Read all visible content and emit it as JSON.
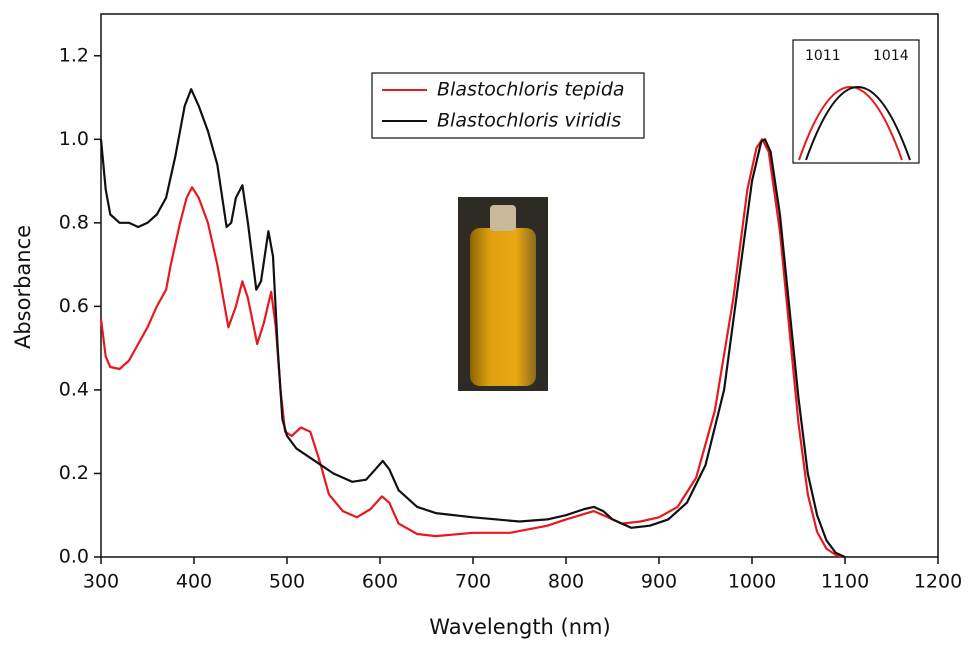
{
  "chart_data": {
    "type": "line",
    "x_label": "Wavelength (nm)",
    "y_label": "Absorbance",
    "xlim": [
      300,
      1200
    ],
    "ylim": [
      0,
      1.3
    ],
    "xticks": [
      300,
      400,
      500,
      600,
      700,
      800,
      900,
      1000,
      1100,
      1200
    ],
    "yticks": [
      {
        "value": 0,
        "label": "0.0"
      },
      0.2,
      0.4,
      0.6,
      0.8,
      {
        "value": 1,
        "label": "1.0"
      },
      1.2
    ],
    "annotations": [
      "1011",
      "1014"
    ],
    "series": [
      {
        "name": "Blastochloris tepida",
        "color": "#e8191e",
        "x": [
          300,
          305,
          310,
          320,
          330,
          340,
          350,
          360,
          370,
          375,
          385,
          392,
          398,
          405,
          415,
          425,
          437,
          445,
          452,
          458,
          468,
          475,
          483,
          488,
          493,
          498,
          505,
          515,
          525,
          535,
          545,
          560,
          575,
          590,
          602,
          610,
          620,
          640,
          660,
          700,
          740,
          780,
          800,
          830,
          845,
          860,
          880,
          900,
          920,
          940,
          960,
          980,
          995,
          1005,
          1011,
          1018,
          1030,
          1040,
          1050,
          1060,
          1070,
          1080,
          1090,
          1097
        ],
        "values": [
          0.57,
          0.48,
          0.455,
          0.45,
          0.47,
          0.51,
          0.55,
          0.6,
          0.64,
          0.7,
          0.8,
          0.86,
          0.885,
          0.86,
          0.8,
          0.7,
          0.55,
          0.6,
          0.66,
          0.62,
          0.51,
          0.56,
          0.635,
          0.55,
          0.4,
          0.3,
          0.29,
          0.31,
          0.3,
          0.23,
          0.15,
          0.11,
          0.095,
          0.115,
          0.145,
          0.13,
          0.08,
          0.055,
          0.05,
          0.058,
          0.058,
          0.075,
          0.09,
          0.11,
          0.095,
          0.08,
          0.085,
          0.095,
          0.12,
          0.19,
          0.35,
          0.62,
          0.88,
          0.98,
          1.0,
          0.97,
          0.78,
          0.55,
          0.32,
          0.15,
          0.06,
          0.02,
          0.005,
          0.0
        ]
      },
      {
        "name": "Blastochloris viridis",
        "color": "#111111",
        "x": [
          300,
          305,
          310,
          320,
          330,
          340,
          350,
          360,
          370,
          380,
          390,
          397,
          405,
          415,
          425,
          435,
          440,
          445,
          452,
          458,
          467,
          472,
          480,
          485,
          490,
          495,
          500,
          510,
          530,
          550,
          570,
          585,
          595,
          603,
          610,
          620,
          640,
          660,
          700,
          750,
          780,
          800,
          820,
          830,
          840,
          850,
          870,
          890,
          910,
          930,
          950,
          970,
          985,
          1000,
          1010,
          1014,
          1020,
          1030,
          1040,
          1050,
          1060,
          1070,
          1080,
          1090,
          1100
        ],
        "values": [
          1.0,
          0.88,
          0.82,
          0.8,
          0.8,
          0.79,
          0.8,
          0.82,
          0.86,
          0.96,
          1.08,
          1.12,
          1.08,
          1.02,
          0.94,
          0.79,
          0.8,
          0.86,
          0.89,
          0.8,
          0.64,
          0.66,
          0.78,
          0.72,
          0.5,
          0.33,
          0.29,
          0.26,
          0.23,
          0.2,
          0.18,
          0.185,
          0.21,
          0.23,
          0.21,
          0.16,
          0.12,
          0.105,
          0.095,
          0.085,
          0.09,
          0.1,
          0.115,
          0.12,
          0.11,
          0.09,
          0.07,
          0.075,
          0.09,
          0.13,
          0.22,
          0.4,
          0.65,
          0.9,
          0.995,
          1.0,
          0.97,
          0.82,
          0.6,
          0.38,
          0.2,
          0.1,
          0.04,
          0.01,
          0.0
        ]
      }
    ]
  }
}
